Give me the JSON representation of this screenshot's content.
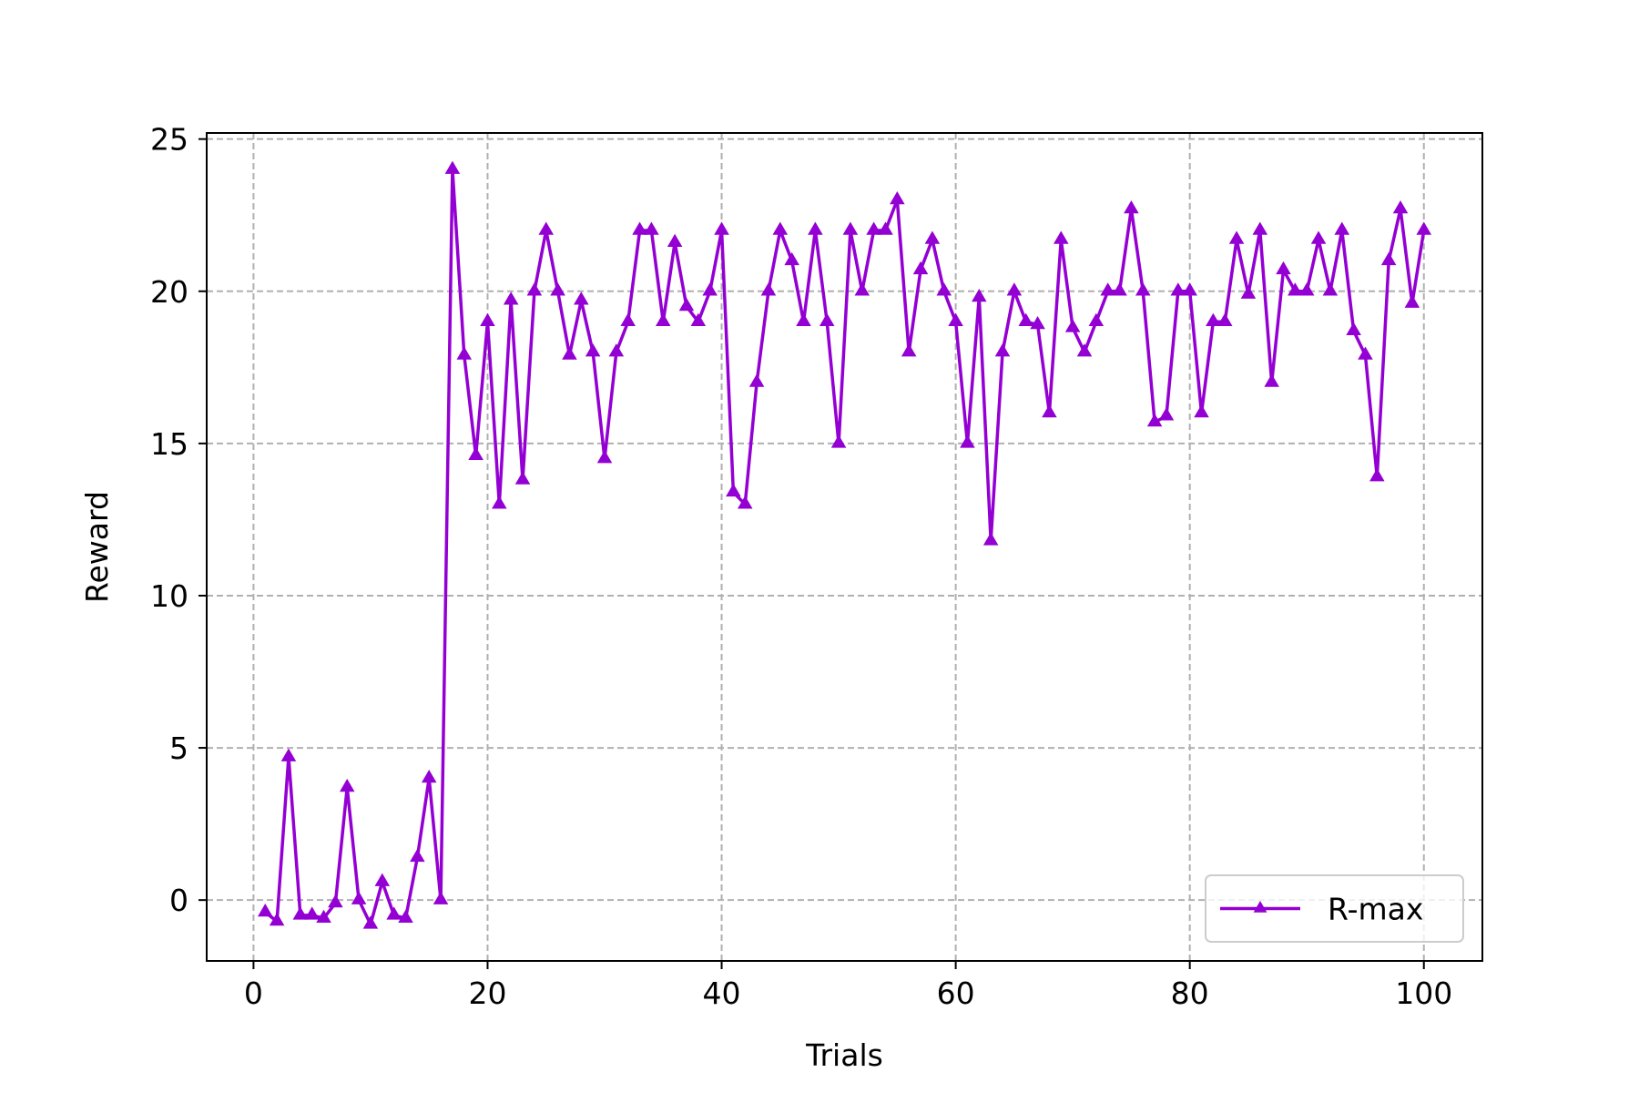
{
  "chart_data": {
    "type": "line",
    "title": "",
    "xlabel": "Trials",
    "ylabel": "Reward",
    "xlim": [
      -4,
      105
    ],
    "ylim": [
      -2,
      25.2
    ],
    "x_ticks": [
      0,
      20,
      40,
      60,
      80,
      100
    ],
    "y_ticks": [
      0,
      5,
      10,
      15,
      20,
      25
    ],
    "grid": true,
    "legend_position": "lower-right",
    "series": [
      {
        "name": "R-max",
        "color": "#9400d3",
        "marker": "triangle-up",
        "x": [
          1,
          2,
          3,
          4,
          5,
          6,
          7,
          8,
          9,
          10,
          11,
          12,
          13,
          14,
          15,
          16,
          17,
          18,
          19,
          20,
          21,
          22,
          23,
          24,
          25,
          26,
          27,
          28,
          29,
          30,
          31,
          32,
          33,
          34,
          35,
          36,
          37,
          38,
          39,
          40,
          41,
          42,
          43,
          44,
          45,
          46,
          47,
          48,
          49,
          50,
          51,
          52,
          53,
          54,
          55,
          56,
          57,
          58,
          59,
          60,
          61,
          62,
          63,
          64,
          65,
          66,
          67,
          68,
          69,
          70,
          71,
          72,
          73,
          74,
          75,
          76,
          77,
          78,
          79,
          80,
          81,
          82,
          83,
          84,
          85,
          86,
          87,
          88,
          89,
          90,
          91,
          92,
          93,
          94,
          95,
          96,
          97,
          98,
          99,
          100
        ],
        "values": [
          -0.4,
          -0.7,
          4.7,
          -0.5,
          -0.5,
          -0.6,
          -0.1,
          3.7,
          0.0,
          -0.8,
          0.6,
          -0.5,
          -0.6,
          1.4,
          4.0,
          0.0,
          24.0,
          17.9,
          14.6,
          19.0,
          13.0,
          19.7,
          13.8,
          20.0,
          22.0,
          20.0,
          17.9,
          19.7,
          18.0,
          14.5,
          18.0,
          19.0,
          22.0,
          22.0,
          19.0,
          21.6,
          19.5,
          19.0,
          20.0,
          22.0,
          13.4,
          13.0,
          17.0,
          20.0,
          22.0,
          21.0,
          19.0,
          22.0,
          19.0,
          15.0,
          22.0,
          20.0,
          22.0,
          22.0,
          23.0,
          18.0,
          20.7,
          21.7,
          20.0,
          19.0,
          15.0,
          19.8,
          11.8,
          18.0,
          20.0,
          19.0,
          18.9,
          16.0,
          21.7,
          18.8,
          18.0,
          19.0,
          20.0,
          20.0,
          22.7,
          20.0,
          15.7,
          15.9,
          20.0,
          20.0,
          16.0,
          19.0,
          19.0,
          21.7,
          19.9,
          22.0,
          17.0,
          20.7,
          20.0,
          20.0,
          21.7,
          20.0,
          22.0,
          18.7,
          17.9,
          13.9,
          21.0,
          22.7,
          19.6,
          22.0
        ]
      }
    ]
  }
}
